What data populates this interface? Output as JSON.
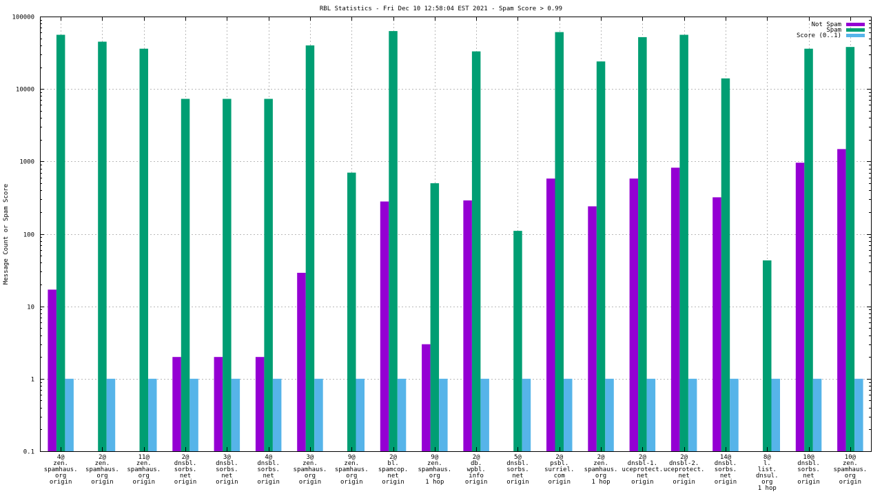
{
  "chart_data": {
    "type": "bar",
    "title": "RBL Statistics - Fri Dec 10 12:58:04 EST 2021 - Spam Score > 0.99",
    "xlabel": "",
    "ylabel": "Message Count or Spam Score",
    "yscale": "log",
    "ylim": [
      0.1,
      100000
    ],
    "yticks": [
      {
        "value": 0.1,
        "label": "0.1"
      },
      {
        "value": 1,
        "label": "1"
      },
      {
        "value": 10,
        "label": "10"
      },
      {
        "value": 100,
        "label": "100"
      },
      {
        "value": 1000,
        "label": "1000"
      },
      {
        "value": 10000,
        "label": "10000"
      },
      {
        "value": 100000,
        "label": "100000"
      }
    ],
    "grid": true,
    "legend_position": "top-right",
    "categories": [
      [
        "4@",
        "zen.",
        "spamhaus.",
        "org",
        "origin"
      ],
      [
        "2@",
        "zen.",
        "spamhaus.",
        "org",
        "origin"
      ],
      [
        "11@",
        "zen.",
        "spamhaus.",
        "org",
        "origin"
      ],
      [
        "2@",
        "dnsbl.",
        "sorbs.",
        "net",
        "origin"
      ],
      [
        "3@",
        "dnsbl.",
        "sorbs.",
        "net",
        "origin"
      ],
      [
        "4@",
        "dnsbl.",
        "sorbs.",
        "net",
        "origin"
      ],
      [
        "3@",
        "zen.",
        "spamhaus.",
        "org",
        "origin"
      ],
      [
        "9@",
        "zen.",
        "spamhaus.",
        "org",
        "origin"
      ],
      [
        "2@",
        "bl.",
        "spamcop.",
        "net",
        "origin"
      ],
      [
        "9@",
        "zen.",
        "spamhaus.",
        "org",
        "1 hop"
      ],
      [
        "2@",
        "db.",
        "wpbl.",
        "info",
        "origin"
      ],
      [
        "5@",
        "dnsbl.",
        "sorbs.",
        "net",
        "origin"
      ],
      [
        "2@",
        "psbl.",
        "surriel.",
        "com",
        "origin"
      ],
      [
        "2@",
        "zen.",
        "spamhaus.",
        "org",
        "1 hop"
      ],
      [
        "2@",
        "dnsbl-1.",
        "uceprotect.",
        "net",
        "origin"
      ],
      [
        "2@",
        "dnsbl-2.",
        "uceprotect.",
        "net",
        "origin"
      ],
      [
        "14@",
        "dnsbl.",
        "sorbs.",
        "net",
        "origin"
      ],
      [
        "8@",
        "l.",
        "list.",
        "dnsul.",
        "org",
        "1 hop"
      ],
      [
        "10@",
        "dnsbl.",
        "sorbs.",
        "net",
        "origin"
      ],
      [
        "10@",
        "zen.",
        "spamhaus.",
        "org",
        "origin"
      ]
    ],
    "series": [
      {
        "name": "Not Spam",
        "color": "#9400d3",
        "values": [
          17,
          null,
          null,
          2,
          2,
          2,
          29,
          null,
          280,
          3,
          290,
          null,
          580,
          240,
          580,
          820,
          320,
          null,
          960,
          1480
        ]
      },
      {
        "name": "Spam",
        "color": "#009e73",
        "values": [
          56000,
          45000,
          36000,
          7300,
          7300,
          7300,
          40000,
          700,
          63000,
          500,
          33000,
          110,
          61000,
          24000,
          52000,
          56000,
          14000,
          43,
          36000,
          38000
        ]
      },
      {
        "name": "Score (0..1)",
        "color": "#56b4e9",
        "values": [
          1,
          1,
          1,
          1,
          1,
          1,
          1,
          1,
          1,
          1,
          1,
          1,
          1,
          1,
          1,
          1,
          1,
          1,
          1,
          1
        ]
      }
    ]
  }
}
